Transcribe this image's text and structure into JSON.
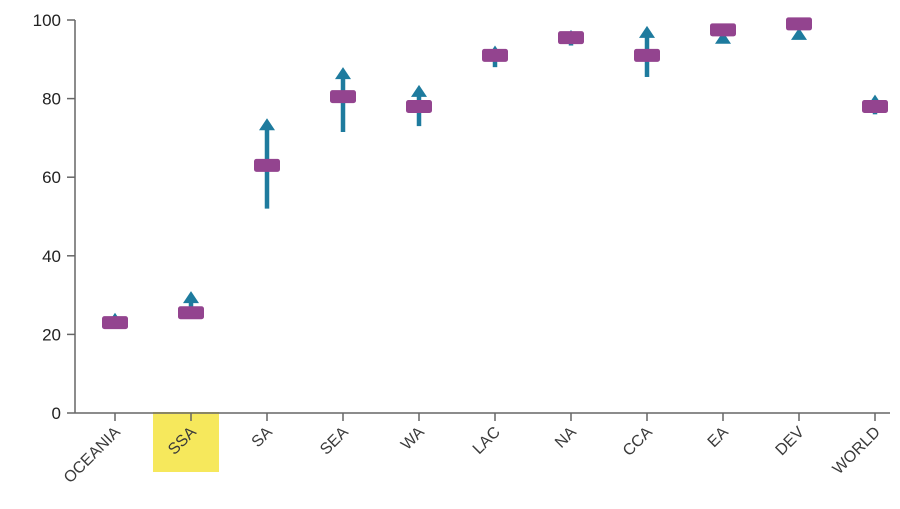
{
  "chart_data": {
    "type": "scatter",
    "title": "",
    "xlabel": "",
    "ylabel": "",
    "ylim": [
      0,
      100
    ],
    "yticks": [
      0,
      20,
      40,
      60,
      80,
      100
    ],
    "grid": false,
    "categories": [
      "OCEANIA",
      "SSA",
      "SA",
      "SEA",
      "WA",
      "LAC",
      "NA",
      "CCA",
      "EA",
      "DEV",
      "WORLD"
    ],
    "highlighted_category": "SSA",
    "series": [
      {
        "marker": "bar",
        "values": [
          23,
          25.5,
          63,
          80.5,
          78,
          91,
          95.5,
          91,
          97.5,
          99,
          78
        ]
      },
      {
        "marker": "arrow",
        "from": [
          23,
          24.5,
          52,
          71.5,
          73,
          88,
          93.5,
          85.5,
          96.5,
          97.5,
          76
        ],
        "to": [
          25.5,
          31,
          75,
          88,
          83.5,
          93.5,
          97.5,
          98.5,
          97,
          98,
          81
        ]
      }
    ],
    "colors": {
      "estimate": "#93448f",
      "arrow": "#1e7b9e",
      "highlight": "#f5e64a",
      "axis": "#666666"
    }
  }
}
